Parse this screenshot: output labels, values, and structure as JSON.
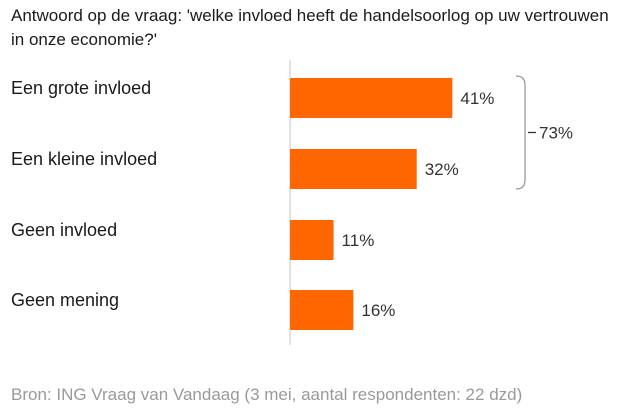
{
  "chart_data": {
    "type": "bar",
    "orientation": "horizontal",
    "title": "Antwoord op de vraag: 'welke invloed heeft de handelsoorlog op uw vertrouwen in onze economie?'",
    "categories": [
      "Een grote invloed",
      "Een kleine invloed",
      "Geen invloed",
      "Geen mening"
    ],
    "values": [
      41,
      32,
      11,
      16
    ],
    "value_labels": [
      "41%",
      "32%",
      "11%",
      "16%"
    ],
    "unit": "%",
    "xlim": [
      0,
      100
    ],
    "grid": false,
    "group_bracket": {
      "members": [
        "Een grote invloed",
        "Een kleine invloed"
      ],
      "label": "73%"
    },
    "source": "Bron: ING Vraag van Vandaag (3 mei, aantal respondenten: 22 dzd)"
  },
  "colors": {
    "bar": "#ff6600",
    "axis": "#c8c8c8",
    "bracket": "#9a9a9a",
    "source_text": "#9a9a9a"
  }
}
